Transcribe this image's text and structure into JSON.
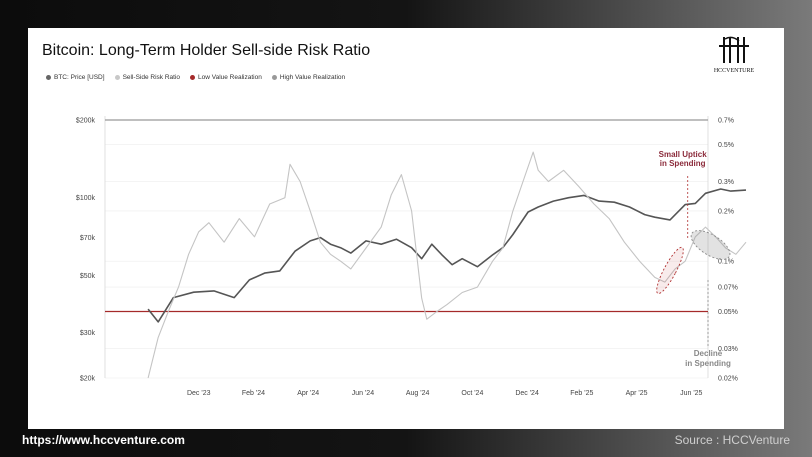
{
  "title": "Bitcoin: Long-Term Holder Sell-side Risk Ratio",
  "logo_text": "HCCVENTURE",
  "legend": [
    {
      "label": "BTC: Price [USD]",
      "color": "#666666"
    },
    {
      "label": "Sell-Side Risk Ratio",
      "color": "#c8c8c8"
    },
    {
      "label": "Low Value Realization",
      "color": "#a52a2a"
    },
    {
      "label": "High Value Realization",
      "color": "#999999"
    }
  ],
  "annotations": {
    "uptick": [
      "Small Uptick",
      "in Spending"
    ],
    "decline": [
      "Decline",
      "in Spending"
    ]
  },
  "footer": {
    "url": "https://www.hccventure.com",
    "source": "Source : HCCVenture"
  },
  "chart_data": {
    "type": "line",
    "x_ticks": [
      "Dec '23",
      "Feb '24",
      "Apr '24",
      "Jun '24",
      "Aug '24",
      "Oct '24",
      "Dec '24",
      "Feb '25",
      "Apr '25",
      "Jun '25"
    ],
    "y_left_ticks": [
      {
        "label": "$200k",
        "value": 200000
      },
      {
        "label": "$100k",
        "value": 100000
      },
      {
        "label": "$70k",
        "value": 70000
      },
      {
        "label": "$50k",
        "value": 50000
      },
      {
        "label": "$30k",
        "value": 30000
      },
      {
        "label": "$20k",
        "value": 20000
      }
    ],
    "y_right_ticks": [
      {
        "label": "0.7%",
        "value": 0.7
      },
      {
        "label": "0.5%",
        "value": 0.5
      },
      {
        "label": "0.3%",
        "value": 0.3
      },
      {
        "label": "0.2%",
        "value": 0.2
      },
      {
        "label": "0.1%",
        "value": 0.1
      },
      {
        "label": "0.07%",
        "value": 0.07
      },
      {
        "label": "0.05%",
        "value": 0.05
      },
      {
        "label": "0.03%",
        "value": 0.03
      },
      {
        "label": "0.02%",
        "value": 0.02
      }
    ],
    "ylim_left": [
      20000,
      200000
    ],
    "ylim_right": [
      0.02,
      0.7
    ],
    "y_scale": "log",
    "thresholds": [
      {
        "name": "Low Value Realization",
        "value": 0.05,
        "color": "#a52a2a"
      },
      {
        "name": "High Value Realization",
        "value": 0.7,
        "color": "#999999"
      }
    ],
    "series": [
      {
        "name": "BTC: Price [USD]",
        "axis": "left",
        "color": "#555555",
        "points": [
          [
            0.0,
            37000
          ],
          [
            0.2,
            33000
          ],
          [
            0.5,
            41000
          ],
          [
            0.9,
            43000
          ],
          [
            1.3,
            43500
          ],
          [
            1.7,
            41000
          ],
          [
            2.0,
            48000
          ],
          [
            2.3,
            51000
          ],
          [
            2.6,
            52000
          ],
          [
            2.9,
            62000
          ],
          [
            3.2,
            68000
          ],
          [
            3.4,
            70000
          ],
          [
            3.6,
            66000
          ],
          [
            3.8,
            64000
          ],
          [
            4.0,
            61000
          ],
          [
            4.3,
            68000
          ],
          [
            4.6,
            66000
          ],
          [
            4.9,
            69000
          ],
          [
            5.2,
            64000
          ],
          [
            5.4,
            58000
          ],
          [
            5.6,
            66000
          ],
          [
            5.8,
            60000
          ],
          [
            6.0,
            55000
          ],
          [
            6.2,
            58000
          ],
          [
            6.5,
            54000
          ],
          [
            6.8,
            60000
          ],
          [
            7.0,
            64000
          ],
          [
            7.2,
            72000
          ],
          [
            7.5,
            88000
          ],
          [
            7.7,
            92000
          ],
          [
            8.0,
            97000
          ],
          [
            8.3,
            100000
          ],
          [
            8.6,
            102000
          ],
          [
            8.9,
            97000
          ],
          [
            9.2,
            96000
          ],
          [
            9.5,
            92000
          ],
          [
            9.8,
            86000
          ],
          [
            10.0,
            84000
          ],
          [
            10.3,
            82000
          ],
          [
            10.6,
            94000
          ],
          [
            10.8,
            95000
          ],
          [
            11.0,
            104000
          ],
          [
            11.3,
            108000
          ],
          [
            11.5,
            106000
          ],
          [
            11.8,
            107000
          ]
        ]
      },
      {
        "name": "Sell-Side Risk Ratio",
        "axis": "right",
        "color": "#c4c4c4",
        "points": [
          [
            0.0,
            0.02
          ],
          [
            0.2,
            0.035
          ],
          [
            0.4,
            0.05
          ],
          [
            0.6,
            0.07
          ],
          [
            0.8,
            0.11
          ],
          [
            1.0,
            0.15
          ],
          [
            1.2,
            0.17
          ],
          [
            1.5,
            0.13
          ],
          [
            1.8,
            0.18
          ],
          [
            2.1,
            0.14
          ],
          [
            2.4,
            0.22
          ],
          [
            2.7,
            0.24
          ],
          [
            2.8,
            0.38
          ],
          [
            3.0,
            0.3
          ],
          [
            3.2,
            0.2
          ],
          [
            3.4,
            0.13
          ],
          [
            3.6,
            0.11
          ],
          [
            3.8,
            0.1
          ],
          [
            4.0,
            0.09
          ],
          [
            4.3,
            0.12
          ],
          [
            4.6,
            0.16
          ],
          [
            4.8,
            0.25
          ],
          [
            5.0,
            0.33
          ],
          [
            5.2,
            0.2
          ],
          [
            5.4,
            0.06
          ],
          [
            5.5,
            0.045
          ],
          [
            5.7,
            0.05
          ],
          [
            5.9,
            0.055
          ],
          [
            6.2,
            0.065
          ],
          [
            6.5,
            0.07
          ],
          [
            6.8,
            0.1
          ],
          [
            7.0,
            0.12
          ],
          [
            7.2,
            0.2
          ],
          [
            7.4,
            0.3
          ],
          [
            7.6,
            0.45
          ],
          [
            7.7,
            0.35
          ],
          [
            7.9,
            0.3
          ],
          [
            8.2,
            0.35
          ],
          [
            8.5,
            0.28
          ],
          [
            8.8,
            0.22
          ],
          [
            9.1,
            0.18
          ],
          [
            9.4,
            0.13
          ],
          [
            9.7,
            0.1
          ],
          [
            10.0,
            0.08
          ],
          [
            10.2,
            0.075
          ],
          [
            10.4,
            0.09
          ],
          [
            10.6,
            0.1
          ],
          [
            10.8,
            0.14
          ],
          [
            11.0,
            0.16
          ],
          [
            11.2,
            0.14
          ],
          [
            11.4,
            0.12
          ],
          [
            11.6,
            0.11
          ],
          [
            11.8,
            0.13
          ]
        ]
      }
    ],
    "legend_position": "top-left",
    "grid": true
  }
}
